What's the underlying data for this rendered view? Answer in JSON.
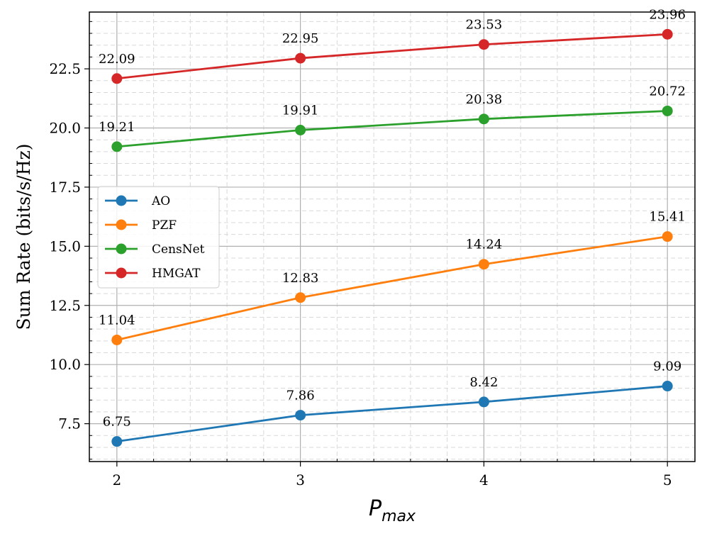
{
  "chart_data": {
    "type": "line",
    "x": [
      2,
      3,
      4,
      5
    ],
    "x_ticks": [
      "2",
      "3",
      "4",
      "5"
    ],
    "xlabel": {
      "main": "P",
      "sub": "max"
    },
    "ylabel": "Sum Rate (bits/s/Hz)",
    "xlim": [
      1.85,
      5.15
    ],
    "ylim": [
      5.9,
      24.9
    ],
    "y_ticks": [
      7.5,
      10.0,
      12.5,
      15.0,
      17.5,
      20.0,
      22.5
    ],
    "y_tick_labels": [
      "7.5",
      "10.0",
      "12.5",
      "15.0",
      "17.5",
      "20.0",
      "22.5"
    ],
    "grid": true,
    "minor_grid": true,
    "legend_position": "center-left",
    "series": [
      {
        "name": "AO",
        "color": "#1f77b4",
        "values": [
          6.75,
          7.86,
          8.42,
          9.09
        ],
        "labels": [
          "6.75",
          "7.86",
          "8.42",
          "9.09"
        ]
      },
      {
        "name": "PZF",
        "color": "#ff7f0e",
        "values": [
          11.04,
          12.83,
          14.24,
          15.41
        ],
        "labels": [
          "11.04",
          "12.83",
          "14.24",
          "15.41"
        ]
      },
      {
        "name": "CensNet",
        "color": "#2ca02c",
        "values": [
          19.21,
          19.91,
          20.38,
          20.72
        ],
        "labels": [
          "19.21",
          "19.91",
          "20.38",
          "20.72"
        ]
      },
      {
        "name": "HMGAT",
        "color": "#d62728",
        "values": [
          22.09,
          22.95,
          23.53,
          23.96
        ],
        "labels": [
          "22.09",
          "22.95",
          "23.53",
          "23.96"
        ]
      }
    ]
  }
}
